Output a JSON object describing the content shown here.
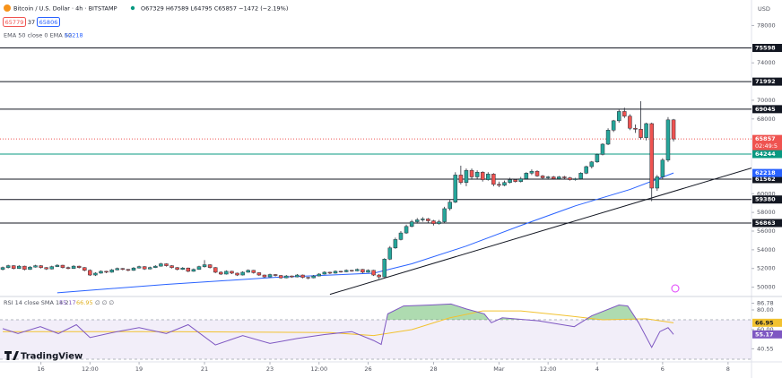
{
  "header": {
    "symbol": "Bitcoin / U.S. Dollar · 4h · BITSTAMP",
    "ohlc": "O67329 H67589 L64795 C65857 −1472 (−2.19%)",
    "sell": 65779,
    "spread": 37,
    "buy": 65806,
    "ema_legend": "EMA 50 close 0 EMA 50",
    "ema_value": 62218,
    "rsi_legend": "RSI 14 close SMA 14 2",
    "rsi_values": [
      55.17,
      66.95
    ],
    "rsi_extra": "∅ ∅ ∅",
    "currency": "USD",
    "logo": "TradingView"
  },
  "chart_data": {
    "type": "candlestick",
    "colors": {
      "up": "#26a69a",
      "down": "#ef5350"
    },
    "ohlc": [
      [
        51900,
        52200,
        51800,
        52100
      ],
      [
        52100,
        52400,
        52000,
        52300
      ],
      [
        52300,
        52350,
        51900,
        52000
      ],
      [
        52000,
        52350,
        51950,
        52250
      ],
      [
        52250,
        52300,
        51800,
        51900
      ],
      [
        51900,
        52250,
        51850,
        52150
      ],
      [
        52150,
        52400,
        52100,
        52300
      ],
      [
        52300,
        52350,
        52000,
        52100
      ],
      [
        52100,
        52150,
        51850,
        51950
      ],
      [
        51950,
        52300,
        51900,
        52200
      ],
      [
        52200,
        52450,
        52150,
        52350
      ],
      [
        52350,
        52400,
        52000,
        52100
      ],
      [
        52100,
        52200,
        51900,
        52000
      ],
      [
        52000,
        52350,
        51950,
        52250
      ],
      [
        52250,
        52300,
        52000,
        52100
      ],
      [
        52100,
        52150,
        51700,
        51800
      ],
      [
        51800,
        51900,
        51200,
        51300
      ],
      [
        51300,
        51600,
        51200,
        51500
      ],
      [
        51500,
        51800,
        51450,
        51700
      ],
      [
        51700,
        51750,
        51500,
        51600
      ],
      [
        51600,
        51950,
        51550,
        51850
      ],
      [
        51850,
        52100,
        51800,
        52000
      ],
      [
        52000,
        52050,
        51800,
        51900
      ],
      [
        51900,
        51950,
        51700,
        51800
      ],
      [
        51800,
        52150,
        51750,
        52050
      ],
      [
        52050,
        52300,
        52000,
        52200
      ],
      [
        52200,
        52250,
        51850,
        51950
      ],
      [
        51950,
        52200,
        51900,
        52100
      ],
      [
        52100,
        52350,
        52050,
        52250
      ],
      [
        52250,
        52600,
        52200,
        52500
      ],
      [
        52500,
        52550,
        52200,
        52300
      ],
      [
        52300,
        52350,
        52000,
        52100
      ],
      [
        52100,
        52150,
        51800,
        51900
      ],
      [
        51900,
        52150,
        51850,
        52050
      ],
      [
        52050,
        52100,
        51600,
        51700
      ],
      [
        51700,
        52000,
        51650,
        51900
      ],
      [
        51900,
        52300,
        51850,
        52200
      ],
      [
        52200,
        52900,
        52100,
        52400
      ],
      [
        52400,
        52450,
        52000,
        52100
      ],
      [
        52100,
        52150,
        51500,
        51600
      ],
      [
        51600,
        51700,
        51300,
        51400
      ],
      [
        51400,
        51800,
        51350,
        51700
      ],
      [
        51700,
        51750,
        51400,
        51500
      ],
      [
        51500,
        51550,
        51200,
        51300
      ],
      [
        51300,
        51700,
        51250,
        51600
      ],
      [
        51600,
        51900,
        51550,
        51800
      ],
      [
        51800,
        51850,
        51450,
        51550
      ],
      [
        51550,
        51600,
        51200,
        51300
      ],
      [
        51300,
        51350,
        51000,
        51100
      ],
      [
        51100,
        51450,
        51050,
        51350
      ],
      [
        51350,
        51400,
        51150,
        51250
      ],
      [
        51250,
        51300,
        50900,
        51000
      ],
      [
        51000,
        51300,
        50950,
        51200
      ],
      [
        51200,
        51250,
        51000,
        51100
      ],
      [
        51100,
        51400,
        51050,
        51300
      ],
      [
        51300,
        51350,
        50950,
        51050
      ],
      [
        51050,
        51100,
        50850,
        51000
      ],
      [
        51000,
        51300,
        50950,
        51200
      ],
      [
        51200,
        51500,
        51150,
        51400
      ],
      [
        51400,
        51700,
        51350,
        51600
      ],
      [
        51600,
        51650,
        51400,
        51500
      ],
      [
        51500,
        51800,
        51450,
        51700
      ],
      [
        51700,
        51750,
        51550,
        51650
      ],
      [
        51650,
        51900,
        51600,
        51800
      ],
      [
        51800,
        51850,
        51650,
        51750
      ],
      [
        51750,
        52000,
        51700,
        51900
      ],
      [
        51900,
        51950,
        51500,
        51600
      ],
      [
        51600,
        51900,
        51550,
        51800
      ],
      [
        51800,
        51850,
        51200,
        51300
      ],
      [
        51300,
        51400,
        50900,
        51100
      ],
      [
        51100,
        53100,
        51050,
        53000
      ],
      [
        53000,
        54400,
        52900,
        54200
      ],
      [
        54200,
        55300,
        54100,
        55100
      ],
      [
        55100,
        56000,
        55000,
        55800
      ],
      [
        55800,
        56700,
        55700,
        56500
      ],
      [
        56500,
        57200,
        56400,
        57000
      ],
      [
        57000,
        57400,
        56800,
        57200
      ],
      [
        57200,
        57500,
        57000,
        57300
      ],
      [
        57300,
        57400,
        56900,
        57100
      ],
      [
        57100,
        57200,
        56600,
        56800
      ],
      [
        56800,
        57200,
        56700,
        57000
      ],
      [
        57000,
        58600,
        56900,
        58400
      ],
      [
        58400,
        59400,
        58200,
        59100
      ],
      [
        59100,
        62300,
        59000,
        62000
      ],
      [
        62000,
        63000,
        61000,
        61200
      ],
      [
        61200,
        62700,
        60800,
        62500
      ],
      [
        62500,
        62700,
        61500,
        61800
      ],
      [
        61800,
        62500,
        61600,
        62300
      ],
      [
        62300,
        62400,
        61300,
        61500
      ],
      [
        61500,
        62300,
        61400,
        62100
      ],
      [
        62100,
        62200,
        60800,
        61000
      ],
      [
        61000,
        61300,
        60700,
        60900
      ],
      [
        60900,
        61400,
        60800,
        61200
      ],
      [
        61200,
        61700,
        61100,
        61500
      ],
      [
        61500,
        61600,
        61200,
        61300
      ],
      [
        61300,
        61800,
        61200,
        61600
      ],
      [
        61600,
        62300,
        61500,
        62200
      ],
      [
        62200,
        62600,
        62000,
        62400
      ],
      [
        62400,
        62500,
        61800,
        61900
      ],
      [
        61900,
        62000,
        61600,
        61700
      ],
      [
        61700,
        61900,
        61500,
        61800
      ],
      [
        61800,
        61900,
        61500,
        61600
      ],
      [
        61600,
        61900,
        61500,
        61800
      ],
      [
        61800,
        61900,
        61600,
        61700
      ],
      [
        61700,
        61800,
        61400,
        61500
      ],
      [
        61500,
        61700,
        61400,
        61600
      ],
      [
        61600,
        62300,
        61500,
        62200
      ],
      [
        62200,
        63000,
        62100,
        62900
      ],
      [
        62900,
        63500,
        62700,
        63400
      ],
      [
        63400,
        64300,
        63300,
        64200
      ],
      [
        64200,
        65400,
        64100,
        65300
      ],
      [
        65300,
        67000,
        65200,
        66800
      ],
      [
        66800,
        67900,
        66600,
        67800
      ],
      [
        67800,
        69000,
        67600,
        68800
      ],
      [
        68800,
        69200,
        68100,
        68300
      ],
      [
        68300,
        68500,
        66800,
        67000
      ],
      [
        67000,
        67400,
        66500,
        66900
      ],
      [
        66900,
        69900,
        65800,
        66000
      ],
      [
        66000,
        67600,
        65700,
        67500
      ],
      [
        67500,
        67600,
        59200,
        60600
      ],
      [
        60600,
        62000,
        60300,
        61800
      ],
      [
        61800,
        63800,
        61500,
        63600
      ],
      [
        63600,
        68200,
        63400,
        67900
      ],
      [
        67900,
        68000,
        65600,
        65857
      ]
    ],
    "xlim": [
      -0.5,
      137.3
    ],
    "xticks": [
      {
        "value": 7,
        "label": "16"
      },
      {
        "value": 16,
        "label": "12:00"
      },
      {
        "value": 25,
        "label": "19"
      },
      {
        "value": 37,
        "label": "21"
      },
      {
        "value": 49,
        "label": "23"
      },
      {
        "value": 58,
        "label": "12:00"
      },
      {
        "value": 67,
        "label": "26"
      },
      {
        "value": 79,
        "label": "28"
      },
      {
        "value": 91,
        "label": "Mar"
      },
      {
        "value": 100,
        "label": "12:00"
      },
      {
        "value": 109,
        "label": "4"
      },
      {
        "value": 121,
        "label": "6"
      },
      {
        "value": 133,
        "label": "8"
      }
    ],
    "ylim": [
      49100,
      79000
    ],
    "yticks": [
      50000,
      52000,
      54000,
      56000,
      58000,
      60000,
      68000,
      70000,
      74000,
      78000
    ],
    "levels": [
      {
        "value": 75598,
        "color": "#131722"
      },
      {
        "value": 71992,
        "color": "#131722"
      },
      {
        "value": 69045,
        "color": "#131722"
      },
      {
        "value": 64244,
        "color": "#089981"
      },
      {
        "value": 61562,
        "color": "#131722"
      },
      {
        "value": 59380,
        "color": "#131722"
      },
      {
        "value": 56863,
        "color": "#131722"
      }
    ],
    "last": {
      "value": 65857,
      "countdown": "02:49:5",
      "color": "#ef5350"
    },
    "ema": {
      "color": "#2962ff",
      "x": [
        10,
        30,
        50,
        68,
        75,
        85,
        95,
        105,
        115,
        123
      ],
      "values": [
        49400,
        50300,
        51050,
        51500,
        52500,
        54400,
        56600,
        58700,
        60450,
        62218
      ]
    },
    "trendline": {
      "color": "#131722",
      "x": [
        60,
        137.3
      ],
      "values": [
        49230,
        62750
      ]
    },
    "rsi": {
      "ylim": [
        28.2,
        91.8
      ],
      "yticks": [
        86.78,
        {
          "value": 80,
          "label": "80.00"
        },
        {
          "value": 60,
          "label": "60.00"
        },
        40.55
      ],
      "band": [
        30,
        70
      ],
      "line": {
        "color": "#7e57c2",
        "x": [
          0,
          2.8,
          6.9,
          10.2,
          13.5,
          16,
          21,
          25,
          30,
          34,
          39,
          44,
          49,
          54,
          59,
          64,
          68,
          69.4,
          70.6,
          73.5,
          78.5,
          82.2,
          85,
          88.3,
          89.6,
          91.6,
          98.2,
          104.8,
          108,
          113,
          114.6,
          116.6,
          119,
          120.5,
          122,
          123
        ],
        "values": [
          61,
          56,
          63,
          56,
          65,
          52,
          58,
          62,
          56,
          65,
          44.5,
          54,
          46,
          51,
          55,
          58,
          49,
          45,
          76,
          84,
          85,
          86,
          81,
          76,
          67,
          72,
          69,
          63,
          74,
          85,
          84,
          67,
          42,
          58,
          62,
          55.17
        ]
      },
      "sma": {
        "color": "#f2c230",
        "x": [
          0,
          30,
          60,
          68,
          75,
          82,
          88,
          95,
          102,
          110,
          118,
          123
        ],
        "values": [
          58,
          58,
          57,
          54,
          60,
          72,
          79,
          79,
          75,
          70,
          71,
          66.95
        ]
      }
    }
  }
}
